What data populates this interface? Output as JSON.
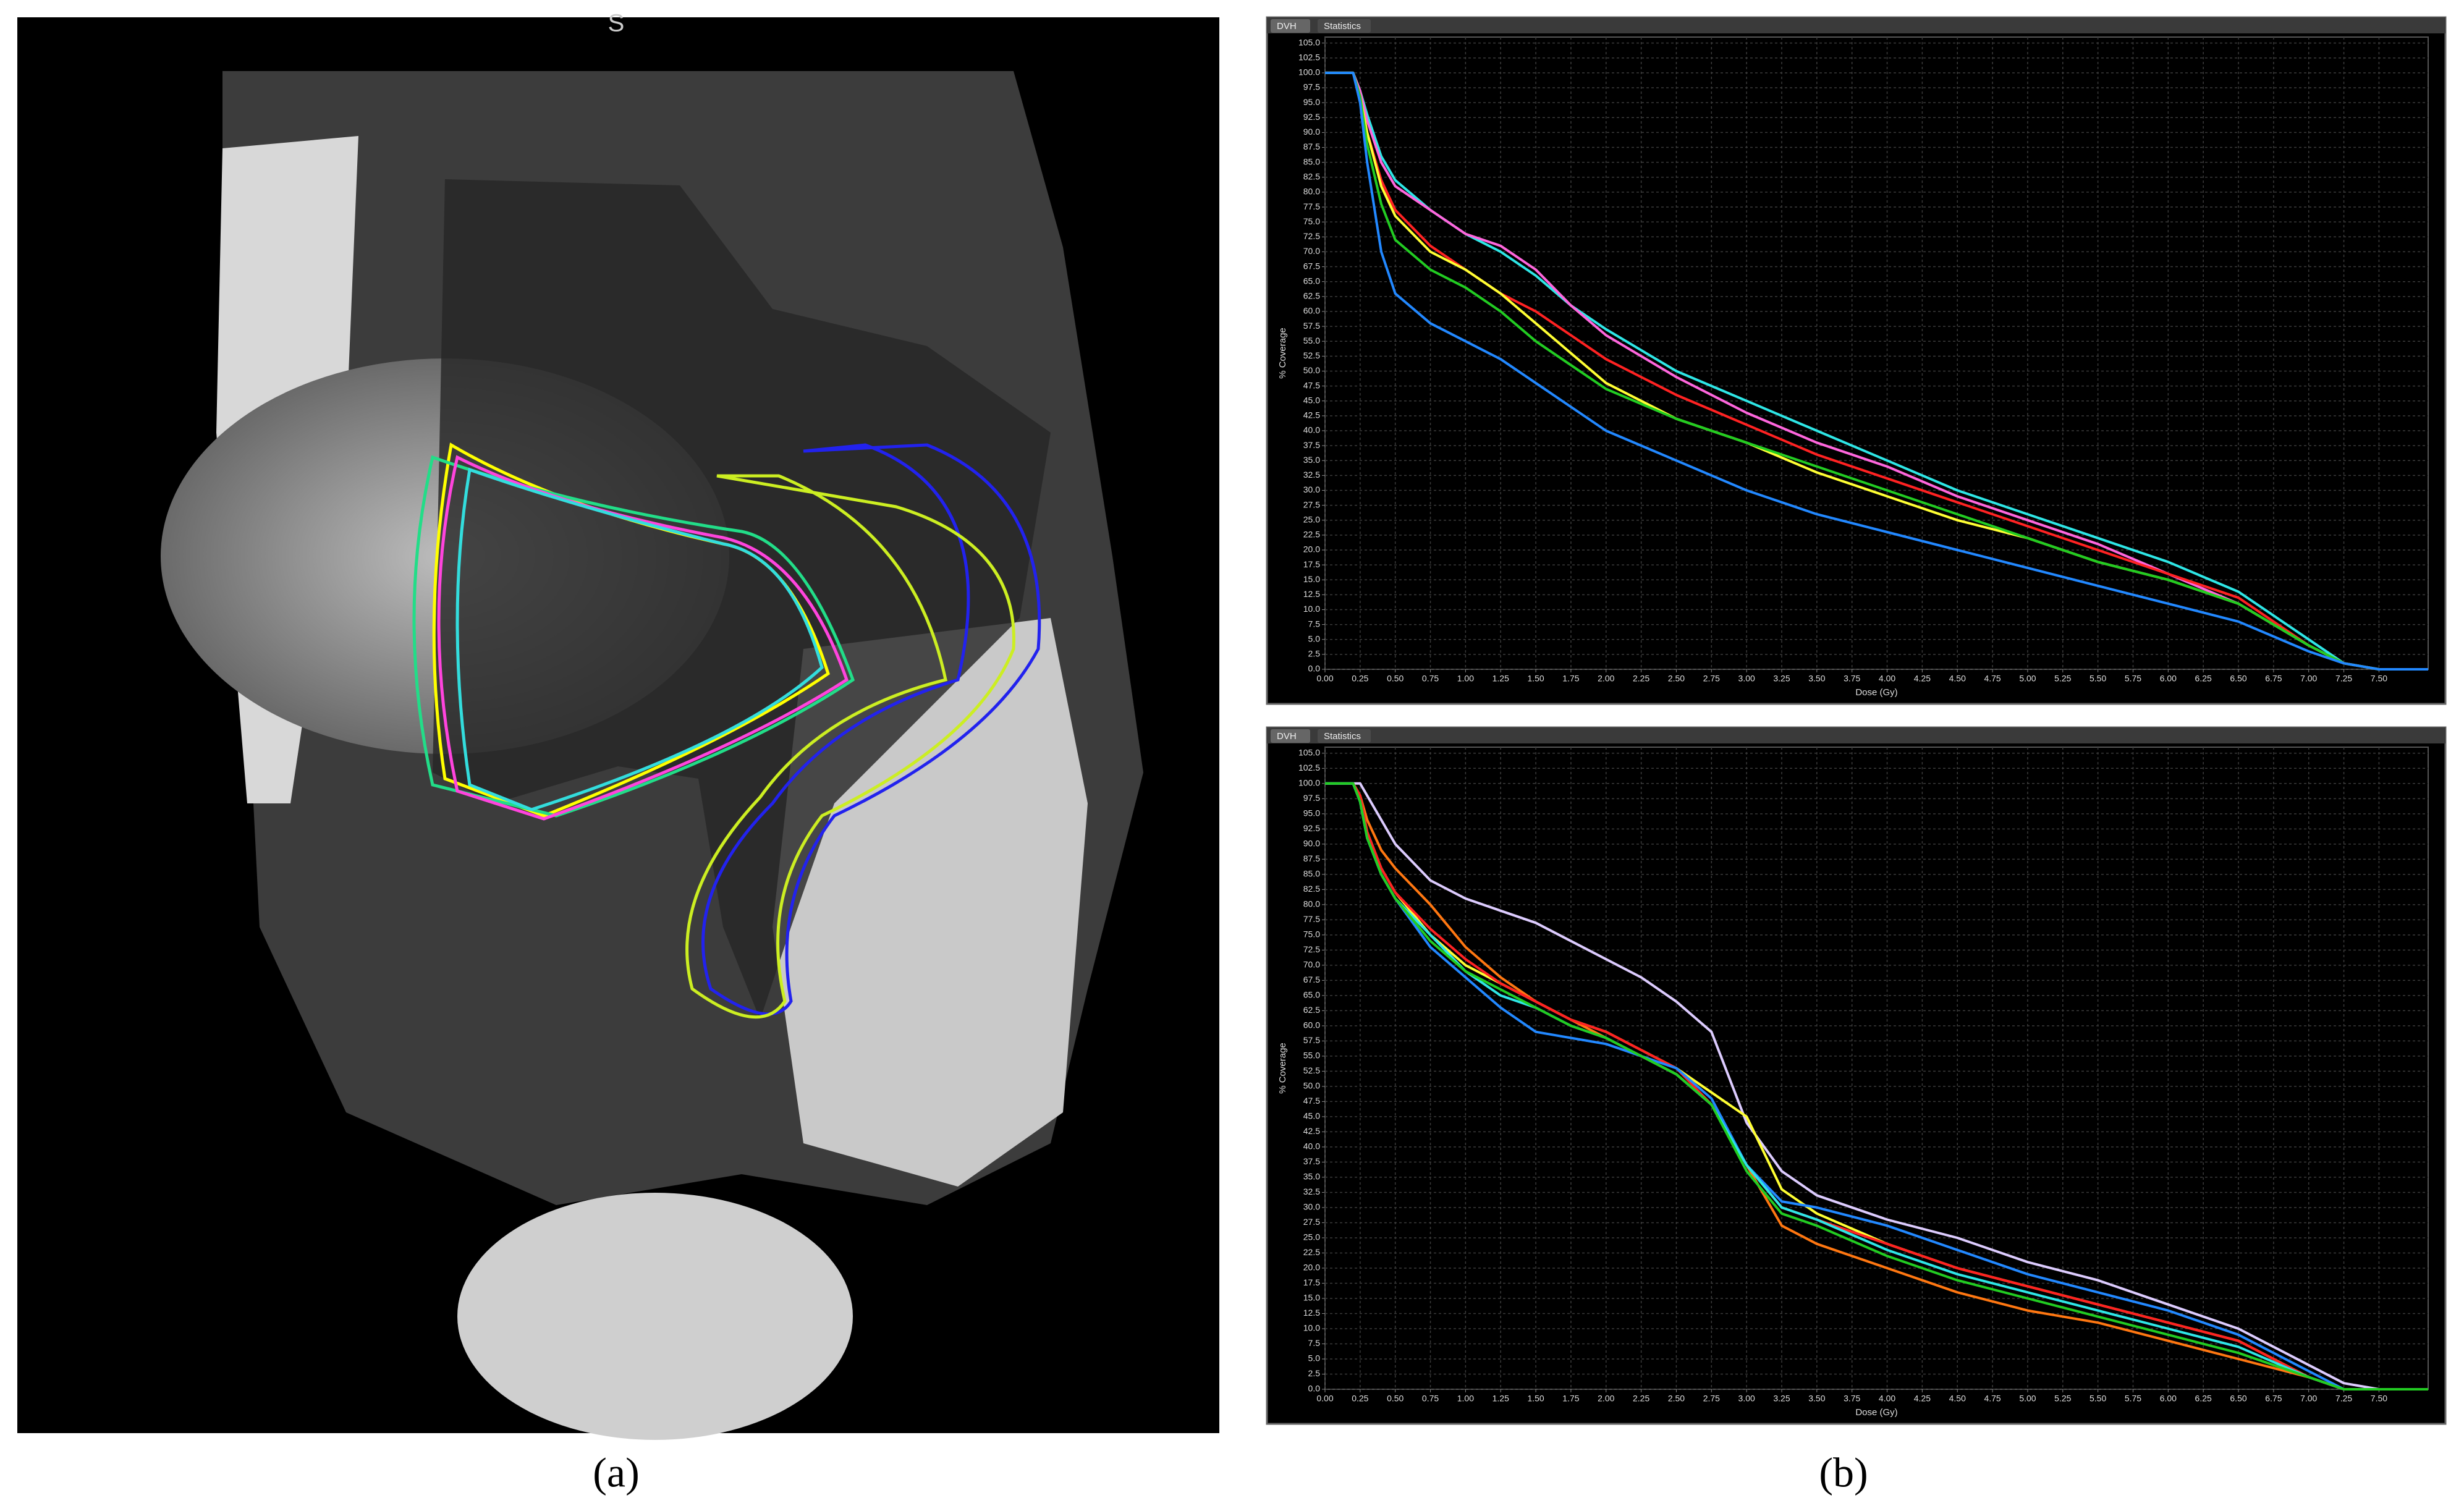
{
  "panels": {
    "a_label": "(a)",
    "b_label": "(b)",
    "orientation_marker": "S"
  },
  "chart_data": [
    {
      "type": "line",
      "tabs": [
        "DVH",
        "Statistics"
      ],
      "x_label": "Dose (Gy)",
      "y_label": "% Coverage",
      "grid": true,
      "xlim": [
        0,
        7.85
      ],
      "ylim": [
        0,
        106
      ],
      "xticks": [
        {
          "value": 0,
          "label": "0.00"
        },
        0.25,
        {
          "value": 0.5,
          "label": "0.50"
        },
        0.75,
        {
          "value": 1,
          "label": "1.00"
        },
        1.25,
        {
          "value": 1.5,
          "label": "1.50"
        },
        1.75,
        {
          "value": 2,
          "label": "2.00"
        },
        2.25,
        {
          "value": 2.5,
          "label": "2.50"
        },
        2.75,
        {
          "value": 3,
          "label": "3.00"
        },
        3.25,
        {
          "value": 3.5,
          "label": "3.50"
        },
        3.75,
        {
          "value": 4,
          "label": "4.00"
        },
        4.25,
        {
          "value": 4.5,
          "label": "4.50"
        },
        4.75,
        {
          "value": 5,
          "label": "5.00"
        },
        5.25,
        {
          "value": 5.5,
          "label": "5.50"
        },
        5.75,
        {
          "value": 6,
          "label": "6.00"
        },
        6.25,
        {
          "value": 6.5,
          "label": "6.50"
        },
        6.75,
        {
          "value": 7,
          "label": "7.00"
        },
        7.25,
        {
          "value": 7.5,
          "label": "7.50"
        }
      ],
      "yticks": [
        {
          "value": 0,
          "label": "0.0"
        },
        2.5,
        {
          "value": 5,
          "label": "5.0"
        },
        7.5,
        {
          "value": 10,
          "label": "10.0"
        },
        12.5,
        {
          "value": 15,
          "label": "15.0"
        },
        17.5,
        {
          "value": 20,
          "label": "20.0"
        },
        22.5,
        {
          "value": 25,
          "label": "25.0"
        },
        27.5,
        {
          "value": 30,
          "label": "30.0"
        },
        32.5,
        {
          "value": 35,
          "label": "35.0"
        },
        37.5,
        {
          "value": 40,
          "label": "40.0"
        },
        42.5,
        {
          "value": 45,
          "label": "45.0"
        },
        47.5,
        {
          "value": 50,
          "label": "50.0"
        },
        52.5,
        {
          "value": 55,
          "label": "55.0"
        },
        57.5,
        {
          "value": 60,
          "label": "60.0"
        },
        62.5,
        {
          "value": 65,
          "label": "65.0"
        },
        67.5,
        {
          "value": 70,
          "label": "70.0"
        },
        72.5,
        {
          "value": 75,
          "label": "75.0"
        },
        77.5,
        {
          "value": 80,
          "label": "80.0"
        },
        82.5,
        {
          "value": 85,
          "label": "85.0"
        },
        87.5,
        {
          "value": 90,
          "label": "90.0"
        },
        92.5,
        {
          "value": 95,
          "label": "95.0"
        },
        97.5,
        {
          "value": 100,
          "label": "100.0"
        },
        102.5,
        {
          "value": 105,
          "label": "105.0"
        }
      ],
      "x": [
        0,
        0.1,
        0.2,
        0.25,
        0.3,
        0.4,
        0.5,
        0.75,
        1,
        1.25,
        1.5,
        1.75,
        2,
        2.5,
        3,
        3.5,
        4,
        4.5,
        5,
        5.5,
        6,
        6.5,
        7,
        7.25,
        7.5,
        7.85
      ],
      "series": [
        {
          "color": "#2ee6e6",
          "values": [
            100,
            100,
            100,
            97,
            93,
            86,
            82,
            77,
            73,
            70,
            66,
            61,
            57,
            50,
            45,
            40,
            35,
            30,
            26,
            22,
            18,
            13,
            5,
            1,
            0,
            0
          ]
        },
        {
          "color": "#ff66dd",
          "values": [
            100,
            100,
            100,
            97,
            92,
            85,
            81,
            77,
            73,
            71,
            67,
            61,
            56,
            49,
            43,
            38,
            34,
            29,
            25,
            21,
            16,
            11,
            4,
            1,
            0,
            0
          ]
        },
        {
          "color": "#ff2222",
          "values": [
            100,
            100,
            100,
            96,
            90,
            82,
            77,
            71,
            67,
            63,
            60,
            56,
            52,
            46,
            41,
            36,
            32,
            28,
            24,
            20,
            16,
            12,
            4,
            1,
            0,
            0
          ]
        },
        {
          "color": "#ffff33",
          "values": [
            100,
            100,
            100,
            96,
            90,
            81,
            76,
            70,
            67,
            63,
            58,
            53,
            48,
            42,
            38,
            33,
            29,
            25,
            22,
            18,
            15,
            11,
            4,
            1,
            0,
            0
          ]
        },
        {
          "color": "#22cc22",
          "values": [
            100,
            100,
            100,
            96,
            88,
            78,
            72,
            67,
            64,
            60,
            55,
            51,
            47,
            42,
            38,
            34,
            30,
            26,
            22,
            18,
            15,
            11,
            4,
            1,
            0,
            0
          ]
        },
        {
          "color": "#2288ff",
          "values": [
            100,
            100,
            100,
            95,
            85,
            70,
            63,
            58,
            55,
            52,
            48,
            44,
            40,
            35,
            30,
            26,
            23,
            20,
            17,
            14,
            11,
            8,
            3,
            1,
            0,
            0
          ]
        }
      ]
    },
    {
      "type": "line",
      "tabs": [
        "DVH",
        "Statistics"
      ],
      "x_label": "Dose (Gy)",
      "y_label": "% Coverage",
      "grid": true,
      "xlim": [
        0,
        7.85
      ],
      "ylim": [
        0,
        106
      ],
      "xticks": [
        {
          "value": 0,
          "label": "0.00"
        },
        0.25,
        {
          "value": 0.5,
          "label": "0.50"
        },
        0.75,
        {
          "value": 1,
          "label": "1.00"
        },
        1.25,
        {
          "value": 1.5,
          "label": "1.50"
        },
        1.75,
        {
          "value": 2,
          "label": "2.00"
        },
        2.25,
        {
          "value": 2.5,
          "label": "2.50"
        },
        2.75,
        {
          "value": 3,
          "label": "3.00"
        },
        3.25,
        {
          "value": 3.5,
          "label": "3.50"
        },
        3.75,
        {
          "value": 4,
          "label": "4.00"
        },
        4.25,
        {
          "value": 4.5,
          "label": "4.50"
        },
        4.75,
        {
          "value": 5,
          "label": "5.00"
        },
        5.25,
        {
          "value": 5.5,
          "label": "5.50"
        },
        5.75,
        {
          "value": 6,
          "label": "6.00"
        },
        6.25,
        {
          "value": 6.5,
          "label": "6.50"
        },
        6.75,
        {
          "value": 7,
          "label": "7.00"
        },
        7.25,
        {
          "value": 7.5,
          "label": "7.50"
        }
      ],
      "yticks": [
        {
          "value": 0,
          "label": "0.0"
        },
        2.5,
        {
          "value": 5,
          "label": "5.0"
        },
        7.5,
        {
          "value": 10,
          "label": "10.0"
        },
        12.5,
        {
          "value": 15,
          "label": "15.0"
        },
        17.5,
        {
          "value": 20,
          "label": "20.0"
        },
        22.5,
        {
          "value": 25,
          "label": "25.0"
        },
        27.5,
        {
          "value": 30,
          "label": "30.0"
        },
        32.5,
        {
          "value": 35,
          "label": "35.0"
        },
        37.5,
        {
          "value": 40,
          "label": "40.0"
        },
        42.5,
        {
          "value": 45,
          "label": "45.0"
        },
        47.5,
        {
          "value": 50,
          "label": "50.0"
        },
        52.5,
        {
          "value": 55,
          "label": "55.0"
        },
        57.5,
        {
          "value": 60,
          "label": "60.0"
        },
        62.5,
        {
          "value": 65,
          "label": "65.0"
        },
        67.5,
        {
          "value": 70,
          "label": "70.0"
        },
        72.5,
        {
          "value": 75,
          "label": "75.0"
        },
        77.5,
        {
          "value": 80,
          "label": "80.0"
        },
        82.5,
        {
          "value": 85,
          "label": "85.0"
        },
        87.5,
        {
          "value": 90,
          "label": "90.0"
        },
        92.5,
        {
          "value": 95,
          "label": "95.0"
        },
        97.5,
        {
          "value": 100,
          "label": "100.0"
        },
        102.5,
        {
          "value": 105,
          "label": "105.0"
        }
      ],
      "x": [
        0,
        0.2,
        0.25,
        0.3,
        0.4,
        0.5,
        0.75,
        1,
        1.25,
        1.5,
        1.75,
        2,
        2.25,
        2.5,
        2.75,
        3,
        3.25,
        3.5,
        4,
        4.5,
        5,
        5.5,
        6,
        6.5,
        7,
        7.25,
        7.5,
        7.85
      ],
      "series": [
        {
          "color": "#ddccff",
          "values": [
            100,
            100,
            100,
            98,
            94,
            90,
            84,
            81,
            79,
            77,
            74,
            71,
            68,
            64,
            59,
            44,
            36,
            32,
            28,
            25,
            21,
            18,
            14,
            10,
            4,
            1,
            0,
            0
          ]
        },
        {
          "color": "#ffff33",
          "values": [
            100,
            100,
            98,
            92,
            86,
            82,
            75,
            70,
            67,
            64,
            61,
            59,
            56,
            53,
            49,
            45,
            33,
            29,
            24,
            20,
            17,
            14,
            11,
            8,
            2,
            0,
            0,
            0
          ]
        },
        {
          "color": "#ff7711",
          "values": [
            100,
            100,
            98,
            94,
            89,
            86,
            80,
            73,
            68,
            64,
            61,
            58,
            55,
            52,
            47,
            37,
            27,
            24,
            20,
            16,
            13,
            11,
            8,
            5,
            2,
            0,
            0,
            0
          ]
        },
        {
          "color": "#ff2222",
          "values": [
            100,
            100,
            98,
            92,
            86,
            82,
            76,
            71,
            67,
            64,
            61,
            59,
            56,
            53,
            47,
            37,
            30,
            28,
            24,
            20,
            17,
            14,
            11,
            8,
            2,
            0,
            0,
            0
          ]
        },
        {
          "color": "#2288ff",
          "values": [
            100,
            100,
            97,
            91,
            85,
            81,
            73,
            68,
            63,
            59,
            58,
            57,
            55,
            53,
            48,
            37,
            31,
            30,
            27,
            23,
            19,
            16,
            13,
            9,
            3,
            0,
            0,
            0
          ]
        },
        {
          "color": "#2ee6e6",
          "values": [
            100,
            100,
            97,
            91,
            85,
            81,
            75,
            69,
            65,
            63,
            60,
            58,
            55,
            52,
            47,
            37,
            30,
            28,
            23,
            19,
            16,
            13,
            10,
            7,
            2,
            0,
            0,
            0
          ]
        },
        {
          "color": "#22cc22",
          "values": [
            100,
            100,
            97,
            91,
            85,
            81,
            74,
            69,
            66,
            63,
            60,
            58,
            55,
            52,
            47,
            36,
            29,
            27,
            22,
            18,
            15,
            12,
            9,
            6,
            2,
            0,
            0,
            0
          ]
        }
      ]
    }
  ]
}
